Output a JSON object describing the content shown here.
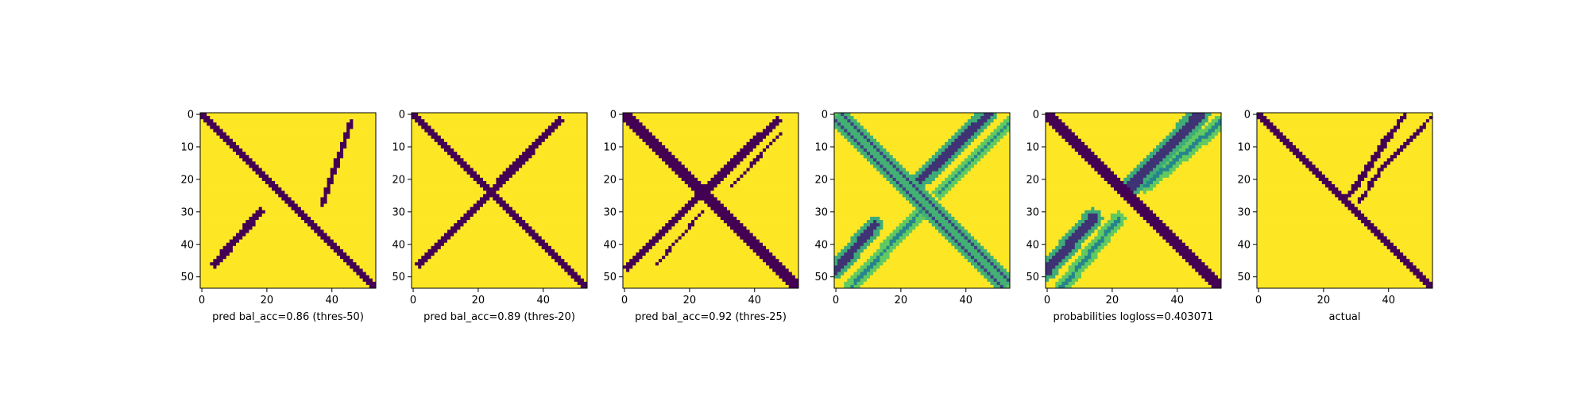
{
  "figure": {
    "colors": {
      "low": "#440154",
      "high": "#fde725",
      "axis": "#000000",
      "background": "#ffffff"
    },
    "colormap": "viridis"
  },
  "chart_data": [
    {
      "type": "heatmap",
      "title": "",
      "ylabel": "",
      "xlabel": "pred bal_acc=0.86 (thres-50)",
      "xticks": [
        0,
        20,
        40
      ],
      "yticks": [
        0,
        10,
        20,
        30,
        40,
        50
      ],
      "matrix_size": 54,
      "value_range": [
        0,
        1
      ],
      "bands": [
        {
          "from": [
            0,
            0
          ],
          "to": [
            53,
            53
          ],
          "width": 2.2,
          "value": 0
        },
        {
          "from": [
            18,
            30
          ],
          "to": [
            4,
            46
          ],
          "width": 2.4,
          "value": 0
        },
        {
          "from": [
            37,
            28
          ],
          "to": [
            46,
            2
          ],
          "width": 1.6,
          "value": 0
        }
      ]
    },
    {
      "type": "heatmap",
      "title": "",
      "ylabel": "",
      "xlabel": "pred bal_acc=0.89 (thres-20)",
      "xticks": [
        0,
        20,
        40
      ],
      "yticks": [
        0,
        10,
        20,
        30,
        40,
        50
      ],
      "matrix_size": 54,
      "value_range": [
        0,
        1
      ],
      "bands": [
        {
          "from": [
            0,
            0
          ],
          "to": [
            53,
            53
          ],
          "width": 2.6,
          "value": 0
        },
        {
          "from": [
            18,
            30
          ],
          "to": [
            2,
            46
          ],
          "width": 2.4,
          "value": 0
        },
        {
          "from": [
            18,
            30
          ],
          "to": [
            45,
            2
          ],
          "width": 2.4,
          "value": 0
        }
      ]
    },
    {
      "type": "heatmap",
      "title": "",
      "ylabel": "",
      "xlabel": "pred bal_acc=0.92 (thres-25)",
      "xticks": [
        0,
        20,
        40
      ],
      "yticks": [
        0,
        10,
        20,
        30,
        40,
        50
      ],
      "matrix_size": 54,
      "value_range": [
        0,
        1
      ],
      "bands": [
        {
          "from": [
            0,
            0
          ],
          "to": [
            53,
            53
          ],
          "width": 3.2,
          "value": 0
        },
        {
          "from": [
            20,
            28
          ],
          "to": [
            1,
            47
          ],
          "width": 2.6,
          "value": 0
        },
        {
          "from": [
            20,
            28
          ],
          "to": [
            47,
            2
          ],
          "width": 2.6,
          "value": 0
        },
        {
          "from": [
            33,
            22
          ],
          "to": [
            48,
            6
          ],
          "width": 0.9,
          "value": 0
        },
        {
          "from": [
            24,
            30
          ],
          "to": [
            10,
            46
          ],
          "width": 0.9,
          "value": 0
        }
      ]
    },
    {
      "type": "heatmap",
      "title": "",
      "ylabel": "",
      "xlabel": "",
      "xticks": [
        0,
        20,
        40
      ],
      "yticks": [
        0,
        10,
        20,
        30,
        40,
        50
      ],
      "matrix_size": 54,
      "value_range": [
        0,
        1
      ],
      "bands": [
        {
          "from": [
            0,
            2
          ],
          "to": [
            51,
            53
          ],
          "width": 0.9,
          "value": 0.2
        },
        {
          "from": [
            2,
            0
          ],
          "to": [
            53,
            51
          ],
          "width": 0.9,
          "value": 0.2
        },
        {
          "from": [
            0,
            0
          ],
          "to": [
            53,
            53
          ],
          "width": 1.3,
          "value": 0.75
        },
        {
          "from": [
            12,
            34
          ],
          "to": [
            0,
            48
          ],
          "width": 2.6,
          "value": 0.15
        },
        {
          "from": [
            26,
            20
          ],
          "to": [
            47,
            0
          ],
          "width": 2.6,
          "value": 0.15
        },
        {
          "from": [
            26,
            30
          ],
          "to": [
            4,
            54
          ],
          "width": 1.2,
          "value": 0.45
        },
        {
          "from": [
            32,
            24
          ],
          "to": [
            54,
            2
          ],
          "width": 1.2,
          "value": 0.45
        }
      ]
    },
    {
      "type": "heatmap",
      "title": "",
      "ylabel": "",
      "xlabel": "probabilities logloss=0.403071",
      "xticks": [
        0,
        20,
        40
      ],
      "yticks": [
        0,
        10,
        20,
        30,
        40,
        50
      ],
      "matrix_size": 54,
      "value_range": [
        0,
        1
      ],
      "bands": [
        {
          "from": [
            0,
            0
          ],
          "to": [
            53,
            53
          ],
          "width": 3.4,
          "value": 0
        },
        {
          "from": [
            14,
            32
          ],
          "to": [
            0,
            48
          ],
          "width": 3.0,
          "value": 0.15
        },
        {
          "from": [
            26,
            22
          ],
          "to": [
            47,
            0
          ],
          "width": 3.0,
          "value": 0.15
        },
        {
          "from": [
            22,
            32
          ],
          "to": [
            4,
            54
          ],
          "width": 1.4,
          "value": 0.45
        },
        {
          "from": [
            30,
            22
          ],
          "to": [
            54,
            2
          ],
          "width": 1.4,
          "value": 0.45
        }
      ]
    },
    {
      "type": "heatmap",
      "title": "",
      "ylabel": "",
      "xlabel": "actual",
      "xticks": [
        0,
        20,
        40
      ],
      "yticks": [
        0,
        10,
        20,
        30,
        40,
        50
      ],
      "matrix_size": 54,
      "value_range": [
        0,
        1
      ],
      "bands": [
        {
          "from": [
            0,
            0
          ],
          "to": [
            53,
            53
          ],
          "width": 1.5,
          "value": 0
        },
        {
          "from": [
            29,
            24
          ],
          "to": [
            45,
            0
          ],
          "width": 1.2,
          "value": 0
        },
        {
          "from": [
            27,
            26
          ],
          "to": [
            40,
            6
          ],
          "width": 1.2,
          "value": 0
        },
        {
          "from": [
            34,
            21
          ],
          "to": [
            54,
            0
          ],
          "width": 1.2,
          "value": 0
        },
        {
          "from": [
            31,
            27
          ],
          "to": [
            40,
            14
          ],
          "width": 1.2,
          "value": 0
        }
      ]
    }
  ]
}
